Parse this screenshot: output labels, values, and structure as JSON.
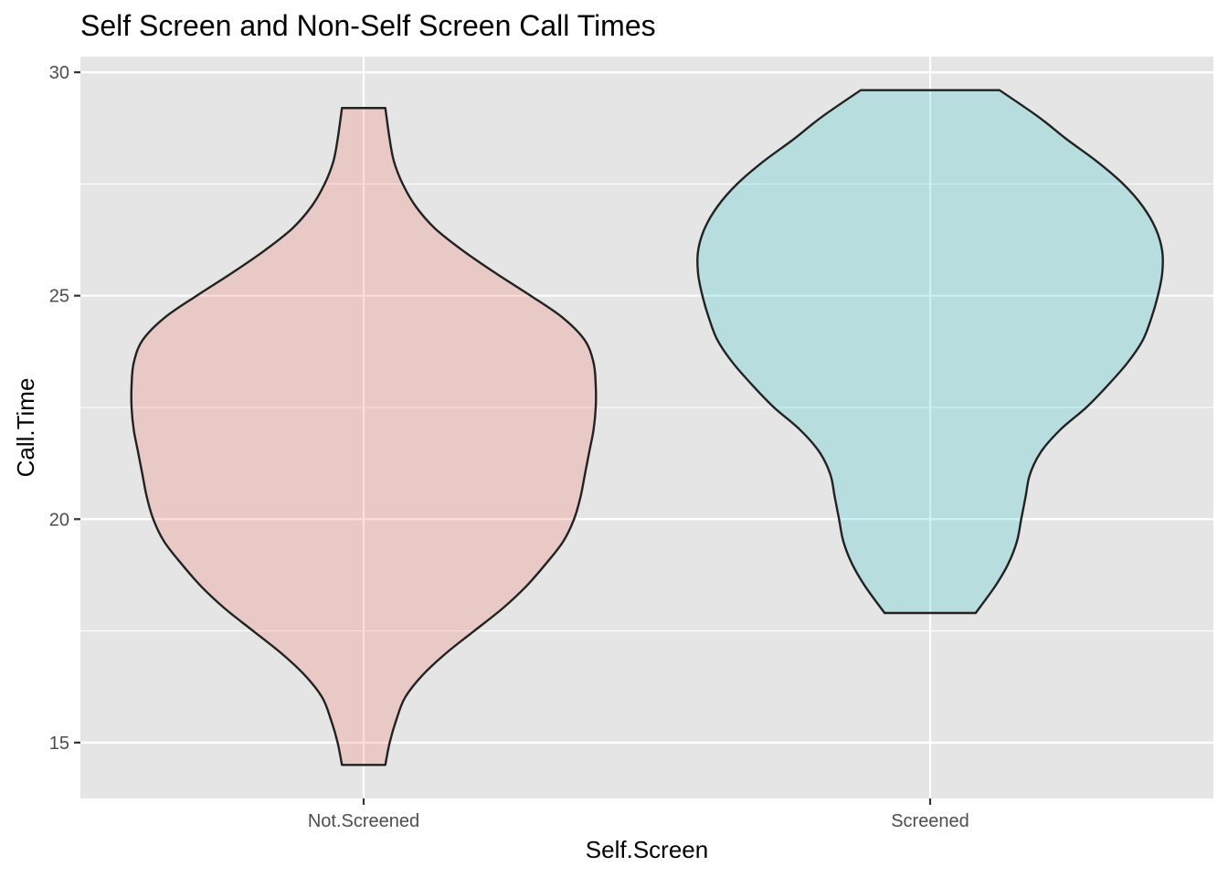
{
  "chart_data": {
    "type": "violin",
    "title": "Self Screen and Non-Self Screen Call Times",
    "xlabel": "Self.Screen",
    "ylabel": "Call.Time",
    "categories": [
      "Not.Screened",
      "Screened"
    ],
    "ylim": [
      13.75,
      30.35
    ],
    "yticks": [
      15,
      20,
      25,
      30
    ],
    "grid": true,
    "legend": "none",
    "series": [
      {
        "category": "Not.Screened",
        "fill": "#f8766d",
        "fill_alpha": 0.25,
        "range": [
          14.5,
          29.2
        ],
        "density_profile": [
          {
            "y": 14.5,
            "w": 0.1
          },
          {
            "y": 15.0,
            "w": 0.12
          },
          {
            "y": 15.5,
            "w": 0.15
          },
          {
            "y": 16.0,
            "w": 0.19
          },
          {
            "y": 16.5,
            "w": 0.27
          },
          {
            "y": 17.0,
            "w": 0.38
          },
          {
            "y": 17.5,
            "w": 0.51
          },
          {
            "y": 18.0,
            "w": 0.64
          },
          {
            "y": 18.5,
            "w": 0.75
          },
          {
            "y": 19.0,
            "w": 0.84
          },
          {
            "y": 19.5,
            "w": 0.92
          },
          {
            "y": 20.0,
            "w": 0.97
          },
          {
            "y": 20.5,
            "w": 1.0
          },
          {
            "y": 21.0,
            "w": 1.02
          },
          {
            "y": 21.5,
            "w": 1.04
          },
          {
            "y": 22.0,
            "w": 1.06
          },
          {
            "y": 22.5,
            "w": 1.07
          },
          {
            "y": 23.0,
            "w": 1.07
          },
          {
            "y": 23.5,
            "w": 1.06
          },
          {
            "y": 24.0,
            "w": 1.02
          },
          {
            "y": 24.5,
            "w": 0.92
          },
          {
            "y": 25.0,
            "w": 0.77
          },
          {
            "y": 25.5,
            "w": 0.61
          },
          {
            "y": 26.0,
            "w": 0.46
          },
          {
            "y": 26.5,
            "w": 0.33
          },
          {
            "y": 27.0,
            "w": 0.24
          },
          {
            "y": 27.5,
            "w": 0.18
          },
          {
            "y": 28.0,
            "w": 0.14
          },
          {
            "y": 28.5,
            "w": 0.12
          },
          {
            "y": 29.2,
            "w": 0.1
          }
        ]
      },
      {
        "category": "Screened",
        "fill": "#00bfc4",
        "fill_alpha": 0.2,
        "range": [
          17.9,
          29.6
        ],
        "density_profile": [
          {
            "y": 17.9,
            "w": 0.21
          },
          {
            "y": 18.5,
            "w": 0.3
          },
          {
            "y": 19.0,
            "w": 0.36
          },
          {
            "y": 19.5,
            "w": 0.4
          },
          {
            "y": 20.0,
            "w": 0.42
          },
          {
            "y": 20.5,
            "w": 0.44
          },
          {
            "y": 21.0,
            "w": 0.46
          },
          {
            "y": 21.5,
            "w": 0.51
          },
          {
            "y": 22.0,
            "w": 0.6
          },
          {
            "y": 22.5,
            "w": 0.72
          },
          {
            "y": 23.0,
            "w": 0.82
          },
          {
            "y": 23.5,
            "w": 0.91
          },
          {
            "y": 24.0,
            "w": 0.98
          },
          {
            "y": 24.5,
            "w": 1.02
          },
          {
            "y": 25.0,
            "w": 1.05
          },
          {
            "y": 25.5,
            "w": 1.07
          },
          {
            "y": 26.0,
            "w": 1.07
          },
          {
            "y": 26.5,
            "w": 1.04
          },
          {
            "y": 27.0,
            "w": 0.98
          },
          {
            "y": 27.5,
            "w": 0.89
          },
          {
            "y": 28.0,
            "w": 0.77
          },
          {
            "y": 28.5,
            "w": 0.63
          },
          {
            "y": 29.0,
            "w": 0.5
          },
          {
            "y": 29.6,
            "w": 0.32
          }
        ]
      }
    ]
  }
}
